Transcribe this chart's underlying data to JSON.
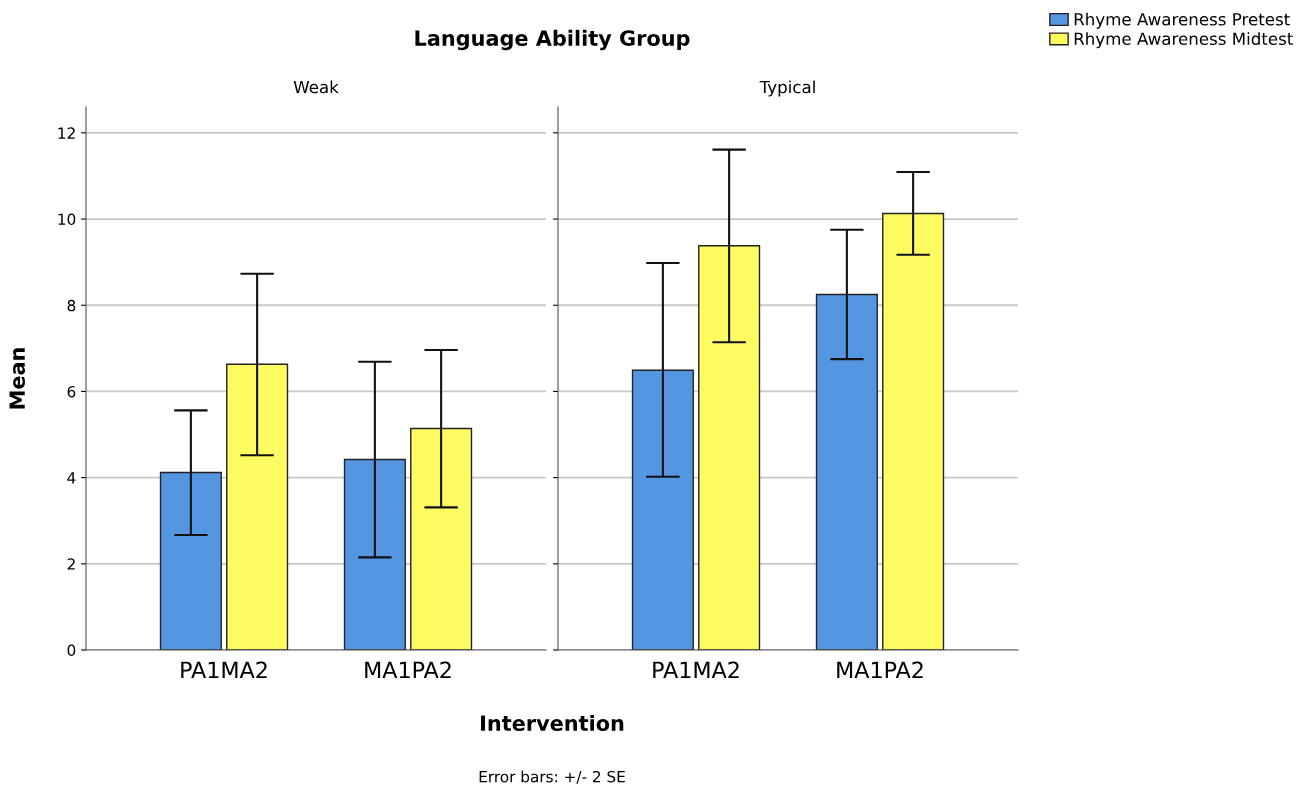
{
  "chart_data": [
    {
      "type": "bar",
      "title": "Language Ability Group",
      "subtitle": "Weak",
      "xlabel": "Intervention",
      "ylabel": "Mean",
      "categories": [
        "PA1MA2",
        "MA1PA2"
      ],
      "series": [
        {
          "name": "Rhyme Awareness Pretest",
          "color": "#5596e3",
          "values": [
            4.12,
            4.42
          ],
          "errors": [
            [
              2.67,
              5.56
            ],
            [
              2.15,
              6.69
            ]
          ]
        },
        {
          "name": "Rhyme Awareness Midtest",
          "color": "#fdfb5f",
          "values": [
            6.63,
            5.14
          ],
          "errors": [
            [
              4.52,
              8.73
            ],
            [
              3.31,
              6.96
            ]
          ]
        }
      ],
      "ylim": [
        0,
        12.6
      ],
      "yticks": [
        0,
        2,
        4,
        6,
        8,
        10,
        12
      ],
      "grid": "y",
      "legend": "top right",
      "annotations": [
        "Error bars: +/- 2 SE"
      ]
    },
    {
      "type": "bar",
      "subtitle": "Typical",
      "categories": [
        "PA1MA2",
        "MA1PA2"
      ],
      "series": [
        {
          "color": "#5596e3",
          "values": [
            6.49,
            8.25
          ],
          "errors": [
            [
              4.02,
              8.98
            ],
            [
              6.75,
              9.75
            ]
          ]
        },
        {
          "color": "#fdfb5f",
          "values": [
            9.38,
            10.13
          ],
          "errors": [
            [
              7.14,
              11.61
            ],
            [
              9.17,
              11.09
            ]
          ]
        }
      ],
      "ylim": [
        0,
        12.6
      ],
      "yticks": [
        0,
        2,
        4,
        6,
        8,
        10,
        12
      ],
      "grid": "y",
      "tick_labels": "x"
    }
  ]
}
